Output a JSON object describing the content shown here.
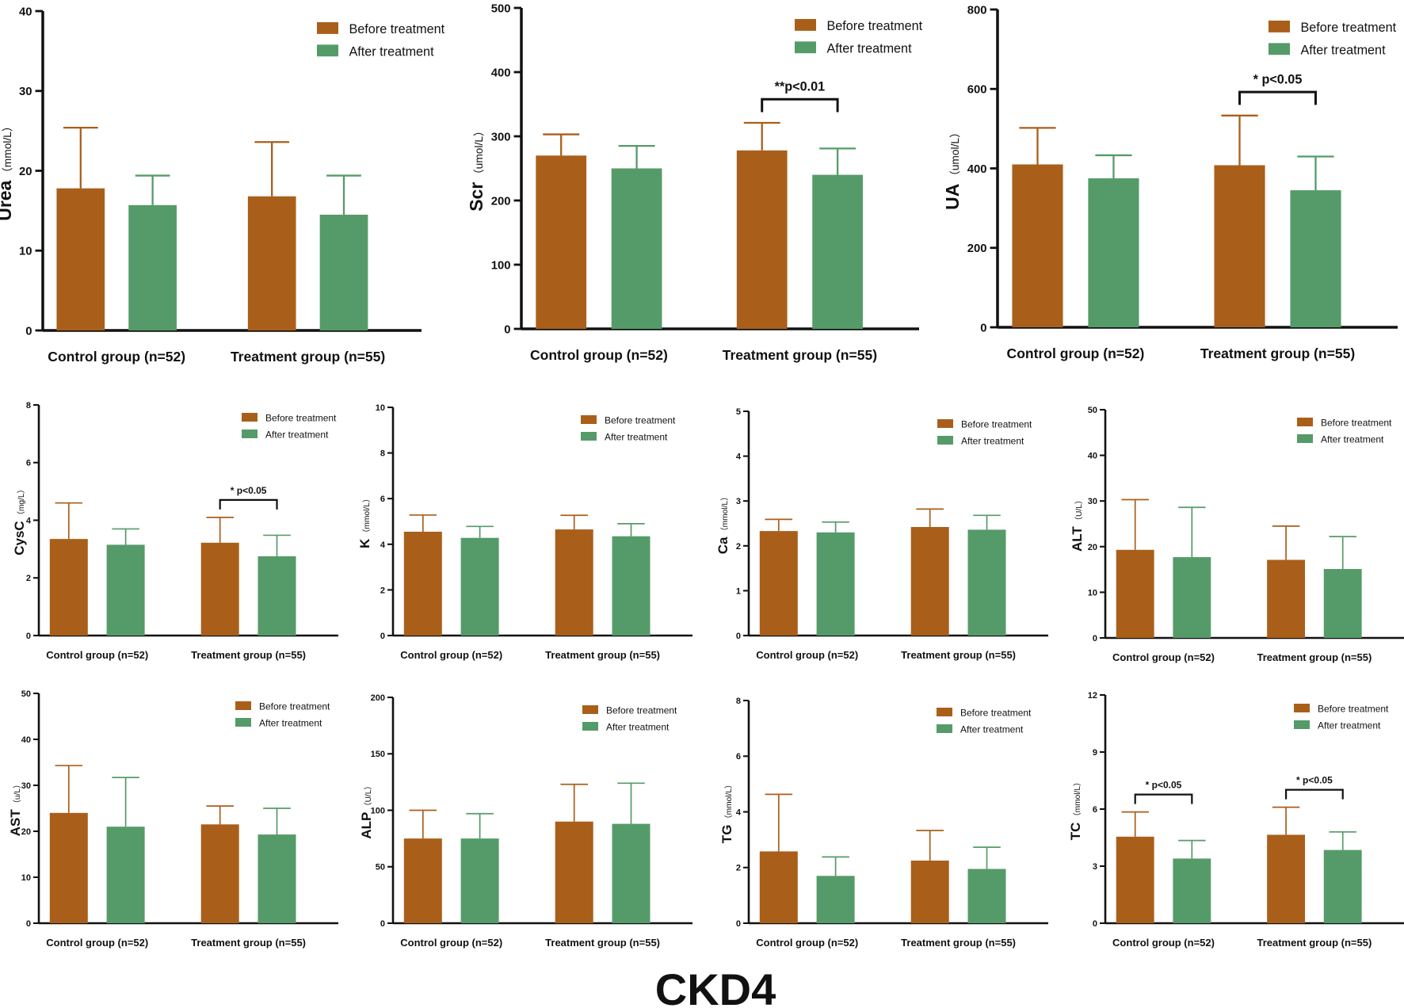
{
  "figure": {
    "title": "CKD4",
    "colors": {
      "before": "#A95F1A",
      "after": "#559B69",
      "axis": "#111111"
    }
  },
  "chart_data": [
    {
      "type": "bar",
      "ylabel_main": "Urea",
      "ylabel_unit": "（mmol/L）",
      "ylim": [
        0,
        40
      ],
      "yticks": [
        0,
        10,
        20,
        30,
        40
      ],
      "categories": [
        "Control group (n=52)",
        "Treatment group (n=55)"
      ],
      "series": [
        {
          "name": "Before treatment",
          "values": [
            17.8,
            16.8
          ],
          "errors": [
            7.6,
            6.8
          ]
        },
        {
          "name": "After treatment",
          "values": [
            15.7,
            14.5
          ],
          "errors": [
            3.7,
            4.9
          ]
        }
      ],
      "annotations": []
    },
    {
      "type": "bar",
      "ylabel_main": "Scr",
      "ylabel_unit": "（umol/L）",
      "ylim": [
        0,
        500
      ],
      "yticks": [
        0,
        100,
        200,
        300,
        400,
        500
      ],
      "categories": [
        "Control group (n=52)",
        "Treatment group (n=55)"
      ],
      "series": [
        {
          "name": "Before treatment",
          "values": [
            270,
            278
          ],
          "errors": [
            33,
            43
          ]
        },
        {
          "name": "After treatment",
          "values": [
            250,
            240
          ],
          "errors": [
            35,
            41
          ]
        }
      ],
      "annotations": [
        {
          "group": 1,
          "label": "**p<0.01"
        }
      ]
    },
    {
      "type": "bar",
      "ylabel_main": "UA",
      "ylabel_unit": "（umol/L）",
      "ylim": [
        0,
        800
      ],
      "yticks": [
        0,
        200,
        400,
        600,
        800
      ],
      "categories": [
        "Control group (n=52)",
        "Treatment group (n=55)"
      ],
      "series": [
        {
          "name": "Before treatment",
          "values": [
            410,
            408
          ],
          "errors": [
            92,
            125
          ]
        },
        {
          "name": "After treatment",
          "values": [
            375,
            345
          ],
          "errors": [
            58,
            85
          ]
        }
      ],
      "annotations": [
        {
          "group": 1,
          "label": "* p<0.05"
        }
      ]
    },
    {
      "type": "bar",
      "ylabel_main": "CysC",
      "ylabel_unit": "（mg/L）",
      "ylim": [
        0,
        8
      ],
      "yticks": [
        0,
        2,
        4,
        6,
        8
      ],
      "categories": [
        "Control group (n=52)",
        "Treatment group (n=55)"
      ],
      "series": [
        {
          "name": "Before treatment",
          "values": [
            3.35,
            3.22
          ],
          "errors": [
            1.25,
            0.88
          ]
        },
        {
          "name": "After treatment",
          "values": [
            3.15,
            2.75
          ],
          "errors": [
            0.55,
            0.73
          ]
        }
      ],
      "annotations": [
        {
          "group": 1,
          "label": "* p<0.05"
        }
      ]
    },
    {
      "type": "bar",
      "ylabel_main": "K",
      "ylabel_unit": "（mmol/L）",
      "ylim": [
        0,
        10
      ],
      "yticks": [
        0,
        2,
        4,
        6,
        8,
        10
      ],
      "categories": [
        "Control group (n=52)",
        "Treatment group (n=55)"
      ],
      "series": [
        {
          "name": "Before treatment",
          "values": [
            4.55,
            4.65
          ],
          "errors": [
            0.73,
            0.62
          ]
        },
        {
          "name": "After treatment",
          "values": [
            4.28,
            4.35
          ],
          "errors": [
            0.5,
            0.55
          ]
        }
      ],
      "annotations": []
    },
    {
      "type": "bar",
      "ylabel_main": "Ca",
      "ylabel_unit": "（mmol/L）",
      "ylim": [
        0,
        5
      ],
      "yticks": [
        0,
        1,
        2,
        3,
        4,
        5
      ],
      "categories": [
        "Control group (n=52)",
        "Treatment group (n=55)"
      ],
      "series": [
        {
          "name": "Before treatment",
          "values": [
            2.33,
            2.42
          ],
          "errors": [
            0.26,
            0.4
          ]
        },
        {
          "name": "After treatment",
          "values": [
            2.3,
            2.36
          ],
          "errors": [
            0.23,
            0.32
          ]
        }
      ],
      "annotations": []
    },
    {
      "type": "bar",
      "ylabel_main": "ALT",
      "ylabel_unit": "（U/L）",
      "ylim": [
        0,
        50
      ],
      "yticks": [
        0,
        10,
        20,
        30,
        40,
        50
      ],
      "categories": [
        "Control group (n=52)",
        "Treatment group (n=55)"
      ],
      "series": [
        {
          "name": "Before treatment",
          "values": [
            19.3,
            17.1
          ],
          "errors": [
            11,
            7.4
          ]
        },
        {
          "name": "After treatment",
          "values": [
            17.7,
            15.1
          ],
          "errors": [
            10.9,
            7.1
          ]
        }
      ],
      "annotations": []
    },
    {
      "type": "bar",
      "ylabel_main": "AST",
      "ylabel_unit": "（u/L）",
      "ylim": [
        0,
        50
      ],
      "yticks": [
        0,
        10,
        20,
        30,
        40,
        50
      ],
      "categories": [
        "Control group (n=52)",
        "Treatment group (n=55)"
      ],
      "series": [
        {
          "name": "Before treatment",
          "values": [
            24,
            21.5
          ],
          "errors": [
            10.3,
            4
          ]
        },
        {
          "name": "After treatment",
          "values": [
            21,
            19.3
          ],
          "errors": [
            10.7,
            5.7
          ]
        }
      ],
      "annotations": []
    },
    {
      "type": "bar",
      "ylabel_main": "ALP",
      "ylabel_unit": "（U/L）",
      "ylim": [
        0,
        200
      ],
      "yticks": [
        0,
        50,
        100,
        150,
        200
      ],
      "categories": [
        "Control group (n=52)",
        "Treatment group (n=55)"
      ],
      "series": [
        {
          "name": "Before treatment",
          "values": [
            75,
            90
          ],
          "errors": [
            25,
            33
          ]
        },
        {
          "name": "After treatment",
          "values": [
            75,
            88
          ],
          "errors": [
            22,
            36
          ]
        }
      ],
      "annotations": []
    },
    {
      "type": "bar",
      "ylabel_main": "TG",
      "ylabel_unit": "（mmol/L）",
      "ylim": [
        0,
        8
      ],
      "yticks": [
        0,
        2,
        4,
        6,
        8
      ],
      "categories": [
        "Control group (n=52)",
        "Treatment group (n=55)"
      ],
      "series": [
        {
          "name": "Before treatment",
          "values": [
            2.58,
            2.25
          ],
          "errors": [
            2.05,
            1.08
          ]
        },
        {
          "name": "After treatment",
          "values": [
            1.7,
            1.95
          ],
          "errors": [
            0.68,
            0.78
          ]
        }
      ],
      "annotations": []
    },
    {
      "type": "bar",
      "ylabel_main": "TC",
      "ylabel_unit": "（mmol/L）",
      "ylim": [
        0,
        12
      ],
      "yticks": [
        0,
        3,
        6,
        9,
        12
      ],
      "categories": [
        "Control group (n=52)",
        "Treatment group (n=55)"
      ],
      "series": [
        {
          "name": "Before treatment",
          "values": [
            4.55,
            4.65
          ],
          "errors": [
            1.3,
            1.45
          ]
        },
        {
          "name": "After treatment",
          "values": [
            3.4,
            3.85
          ],
          "errors": [
            0.95,
            0.95
          ]
        }
      ],
      "annotations": [
        {
          "group": 0,
          "label": "* p<0.05"
        },
        {
          "group": 1,
          "label": "* p<0.05"
        }
      ]
    }
  ]
}
